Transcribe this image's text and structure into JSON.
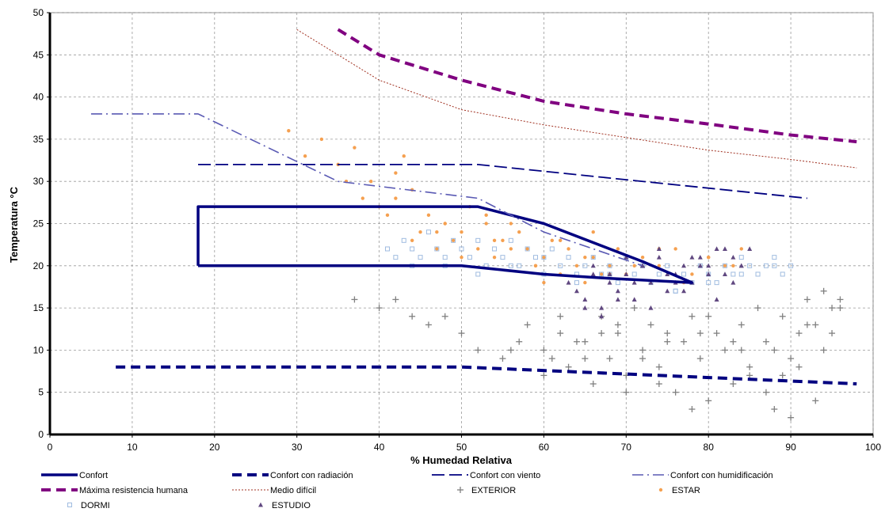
{
  "chart_data": {
    "type": "scatter",
    "title": "",
    "xlabel": "% Humedad Relativa",
    "ylabel": "Temperatura °C",
    "xlim": [
      0,
      100
    ],
    "ylim": [
      0,
      50
    ],
    "xticks": [
      "0",
      "10",
      "20",
      "30",
      "40",
      "50",
      "60",
      "70",
      "80",
      "90",
      "100"
    ],
    "yticks": [
      "0",
      "5",
      "10",
      "15",
      "20",
      "25",
      "30",
      "35",
      "40",
      "45",
      "50"
    ],
    "grid": true,
    "legend_position": "bottom",
    "series": [
      {
        "name": "Confort",
        "kind": "line",
        "style": "solid-thick",
        "color": "#000080",
        "x": [
          18,
          18,
          52,
          60,
          72,
          78,
          68,
          60,
          50,
          18
        ],
        "y": [
          20,
          27,
          27,
          25,
          20.5,
          18,
          18.5,
          19,
          20,
          20
        ]
      },
      {
        "name": "Confort con radiación",
        "kind": "line",
        "style": "dashed-thick",
        "color": "#000080",
        "x": [
          8,
          50,
          98
        ],
        "y": [
          8,
          8,
          6
        ]
      },
      {
        "name": "Confort con viento",
        "kind": "line",
        "style": "long-dash",
        "color": "#000080",
        "x": [
          18,
          52,
          92
        ],
        "y": [
          32,
          32,
          28
        ]
      },
      {
        "name": "Confort con humidificación",
        "kind": "line",
        "style": "dash-dot",
        "color": "#5a5ab4",
        "x": [
          5,
          18,
          35,
          52,
          60,
          72
        ],
        "y": [
          38,
          38,
          30,
          28,
          24,
          20
        ]
      },
      {
        "name": "Máxima resistencia humana",
        "kind": "line",
        "style": "dashed-thick",
        "color": "#800080",
        "x": [
          35,
          40,
          50,
          60,
          70,
          80,
          90,
          98
        ],
        "y": [
          48,
          45,
          42,
          39.5,
          38,
          36.8,
          35.5,
          34.7
        ]
      },
      {
        "name": "Medio difícil",
        "kind": "line",
        "style": "dotted-thin",
        "color": "#a03020",
        "x": [
          30,
          40,
          50,
          60,
          70,
          80,
          90,
          98
        ],
        "y": [
          48,
          42,
          38.5,
          36.7,
          35.2,
          33.7,
          32.6,
          31.6
        ]
      },
      {
        "name": "EXTERIOR",
        "kind": "scatter",
        "marker": "plus",
        "color": "#808080",
        "x": [
          37,
          40,
          42,
          44,
          46,
          48,
          50,
          52,
          55,
          57,
          58,
          60,
          62,
          63,
          65,
          66,
          67,
          68,
          69,
          70,
          71,
          72,
          73,
          74,
          75,
          76,
          77,
          78,
          79,
          80,
          81,
          82,
          83,
          84,
          85,
          86,
          87,
          88,
          89,
          90,
          91,
          92,
          93,
          94,
          95,
          96,
          60,
          65,
          70,
          75,
          80,
          85,
          88,
          90,
          92,
          94,
          96,
          62,
          67,
          72,
          78,
          83,
          87,
          91,
          56,
          61,
          64,
          69,
          74,
          79,
          84,
          89,
          93,
          95
        ],
        "y": [
          16,
          15,
          16,
          14,
          13,
          14,
          12,
          10,
          9,
          11,
          13,
          10,
          12,
          8,
          11,
          6,
          14,
          9,
          12,
          7,
          15,
          10,
          13,
          8,
          12,
          5,
          11,
          14,
          9,
          4,
          12,
          10,
          6,
          13,
          8,
          15,
          11,
          3,
          14,
          9,
          12,
          16,
          13,
          10,
          15,
          16,
          7,
          9,
          5,
          11,
          14,
          7,
          10,
          2,
          13,
          17,
          15,
          14,
          12,
          9,
          3,
          11,
          5,
          8,
          10,
          9,
          11,
          13,
          6,
          12,
          10,
          7,
          4,
          12
        ]
      },
      {
        "name": "ESTAR",
        "kind": "scatter",
        "marker": "dot",
        "color": "#f5a050",
        "x": [
          29,
          31,
          33,
          35,
          37,
          39,
          40,
          42,
          43,
          44,
          45,
          46,
          47,
          48,
          49,
          50,
          51,
          52,
          53,
          54,
          55,
          56,
          57,
          58,
          59,
          60,
          61,
          62,
          63,
          64,
          65,
          66,
          67,
          68,
          69,
          70,
          72,
          74,
          76,
          78,
          80,
          82,
          84,
          38,
          41,
          44,
          47,
          50,
          53,
          56,
          59,
          62,
          65,
          68,
          71,
          74,
          77,
          80,
          83,
          36,
          42,
          48,
          54,
          60,
          66
        ],
        "y": [
          36,
          33,
          35,
          32,
          34,
          30,
          27,
          31,
          33,
          29,
          24,
          26,
          22,
          25,
          23,
          24,
          27,
          22,
          26,
          21,
          23,
          25,
          24,
          22,
          20,
          21,
          23,
          19,
          22,
          20,
          18,
          21,
          19,
          20,
          22,
          19,
          21,
          20,
          22,
          19,
          21,
          20,
          22,
          28,
          26,
          23,
          24,
          21,
          25,
          22,
          20,
          23,
          21,
          19,
          20,
          22,
          18,
          21,
          20,
          30,
          28,
          25,
          23,
          18,
          24
        ]
      },
      {
        "name": "DORMI",
        "kind": "scatter",
        "marker": "square",
        "color": "#a0bce0",
        "x": [
          41,
          42,
          43,
          44,
          45,
          46,
          47,
          48,
          49,
          50,
          51,
          52,
          53,
          54,
          55,
          56,
          57,
          58,
          59,
          60,
          61,
          62,
          63,
          64,
          65,
          66,
          67,
          68,
          69,
          70,
          71,
          72,
          73,
          74,
          75,
          76,
          77,
          78,
          79,
          80,
          81,
          82,
          83,
          84,
          85,
          86,
          87,
          88,
          89,
          90,
          44,
          48,
          52,
          56,
          60,
          64,
          68,
          72,
          76,
          80,
          84,
          88
        ],
        "y": [
          22,
          21,
          23,
          22,
          21,
          24,
          22,
          20,
          23,
          22,
          21,
          23,
          20,
          22,
          21,
          23,
          20,
          22,
          21,
          19,
          22,
          20,
          21,
          19,
          20,
          21,
          19,
          20,
          18,
          21,
          19,
          20,
          18,
          19,
          20,
          17,
          19,
          18,
          20,
          19,
          18,
          20,
          19,
          21,
          20,
          19,
          20,
          21,
          19,
          20,
          20,
          21,
          19,
          20,
          21,
          18,
          19,
          20,
          17,
          18,
          19,
          20
        ]
      },
      {
        "name": "ESTUDIO",
        "kind": "scatter",
        "marker": "triangle",
        "color": "#604880",
        "x": [
          63,
          64,
          65,
          66,
          67,
          68,
          69,
          70,
          71,
          72,
          73,
          74,
          75,
          76,
          77,
          78,
          79,
          80,
          81,
          82,
          83,
          84,
          85,
          65,
          67,
          69,
          71,
          73,
          75,
          77,
          79,
          81,
          83,
          66,
          68,
          70,
          72,
          74,
          76,
          78,
          80,
          82,
          84
        ],
        "y": [
          18,
          17,
          16,
          19,
          15,
          18,
          17,
          19,
          16,
          20,
          18,
          21,
          17,
          19,
          20,
          18,
          21,
          20,
          22,
          19,
          21,
          20,
          22,
          15,
          14,
          16,
          18,
          15,
          19,
          17,
          20,
          16,
          18,
          20,
          19,
          21,
          20,
          22,
          18,
          21,
          19,
          22,
          20
        ]
      }
    ]
  }
}
